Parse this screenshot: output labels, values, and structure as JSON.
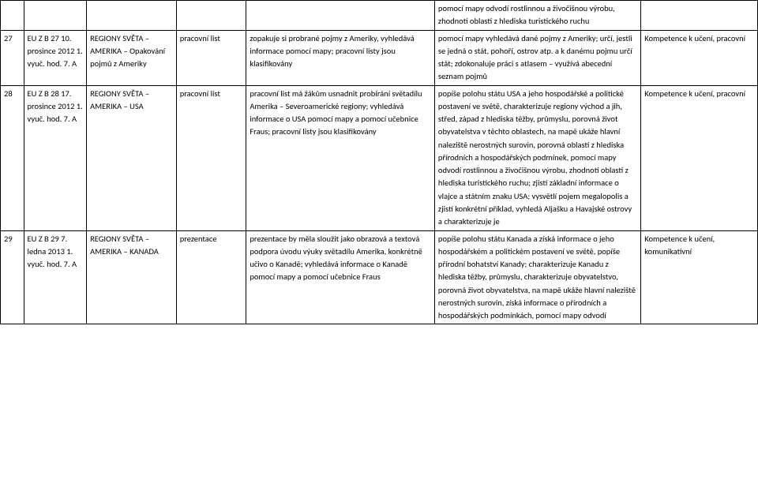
{
  "rows": [
    {
      "num": "",
      "date": "",
      "topic": "",
      "type": "",
      "desc": "",
      "outcome": "pomocí mapy odvodí rostlinnou a živočišnou výrobu, zhodnotí oblasti z hlediska turistického ruchu",
      "comp": ""
    },
    {
      "num": "27",
      "date": "EU Z B 27\n10. prosince 2012\n1. vyuč. hod.\n7. A",
      "topic": "REGIONY SVĚTA – AMERIKA – Opakování pojmů z Ameriky",
      "type": "pracovní list",
      "desc": "zopakuje si probrané pojmy z Ameriky, vyhledává informace pomocí mapy; pracovní listy jsou klasifikovány",
      "outcome": "pomocí mapy vyhledává dané pojmy z Ameriky; určí, jestli se jedná o stát, pohoří, ostrov atp. a k danému pojmu určí stát; zdokonaluje práci s atlasem – využívá abecední seznam pojmů",
      "comp": "Kompetence k učení, pracovní"
    },
    {
      "num": "28",
      "date": "EU Z B 28\n17. prosince 2012\n1. vyuč. hod.\n7. A",
      "topic": "REGIONY SVĚTA – AMERIKA – USA",
      "type": "pracovní list",
      "desc": "pracovní list má žákům usnadnit probírání světadílu Amerika – Severoamerické regiony; vyhledává informace o USA pomocí mapy a pomocí učebnice Fraus; pracovní listy jsou klasifikovány",
      "outcome": "popíše polohu státu USA a jeho hospodářské a politické postavení ve světě, charakterizuje regiony východ a jih, střed, západ z hlediska těžby, průmyslu, porovná život obyvatelstva v těchto oblastech, na mapě ukáže hlavní naleziště nerostných surovin, porovná oblasti z hlediska přírodních a hospodářských podmínek, pomocí mapy odvodí rostlinnou a živočišnou výrobu, zhodnotí oblasti z hlediska turistického ruchu; zjistí základní informace o vlajce a státním znaku USA; vysvětlí pojem megalopolis a zjistí konkrétní příklad, vyhledá Aljašku a Havajské ostrovy a charakterizuje je",
      "comp": "Kompetence k učení, pracovní"
    },
    {
      "num": "29",
      "date": "EU Z B 29\n7. ledna\n2013\n1. vyuč. hod.\n7. A",
      "topic": "REGIONY SVĚTA – AMERIKA – KANADA",
      "type": "prezentace",
      "desc": "prezentace by měla sloužit jako obrazová a textová podpora úvodu výuky světadílu Amerika, konkrétně učivo o Kanadě; vyhledává informace o Kanadě pomocí mapy a pomocí učebnice Fraus",
      "outcome": "popíše polohu státu Kanada a získá informace o jeho hospodářském a politickém postavení ve světě, popíše přírodní bohatství Kanady; charakterizuje Kanadu z hlediska těžby, průmyslu, charakterizuje obyvatelstvo, porovná život obyvatelstva, na mapě ukáže hlavní naleziště nerostných surovin, získá informace o přírodních a hospodářských podmínkách, pomocí mapy odvodí",
      "comp": "Kompetence\nk učení,  komunikativní"
    }
  ]
}
